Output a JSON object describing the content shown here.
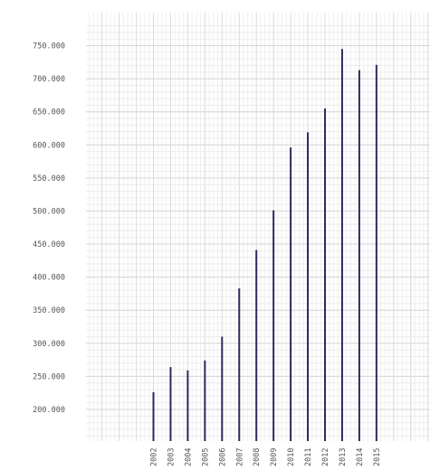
{
  "chart_data": {
    "type": "bar",
    "title": "",
    "xlabel": "",
    "ylabel": "",
    "categories": [
      "2002",
      "2003",
      "2004",
      "2005",
      "2006",
      "2007",
      "2008",
      "2009",
      "2010",
      "2011",
      "2012",
      "2013",
      "2014",
      "2015"
    ],
    "values": [
      226000,
      264000,
      259000,
      274000,
      310000,
      383000,
      441000,
      501000,
      596000,
      619000,
      655000,
      745000,
      713000,
      721000
    ],
    "ylim": [
      150000,
      780000
    ],
    "y_ticks": [
      200000,
      250000,
      300000,
      350000,
      400000,
      450000,
      500000,
      550000,
      600000,
      650000,
      700000,
      750000
    ],
    "y_tick_labels": [
      "200.000",
      "250.000",
      "300.000",
      "350.000",
      "400.000",
      "450.000",
      "500.000",
      "550.000",
      "600.000",
      "650.000",
      "700.000",
      "750.000"
    ],
    "grid": true,
    "legend": "none",
    "bar_color": "#2a2b5e"
  }
}
